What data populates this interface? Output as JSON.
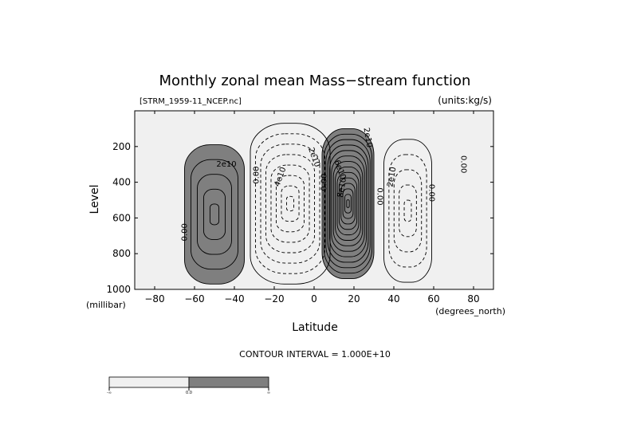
{
  "chart_data": {
    "type": "contour",
    "title": "Monthly zonal mean Mass−stream function",
    "file_label": "[STRM_1959-11_NCEP.nc]",
    "units_label": "(units:kg/s)",
    "xlabel": "Latitude",
    "x_units": "(degrees_north)",
    "ylabel": "Level",
    "y_units": "(millibar)",
    "xlim": [
      -90,
      90
    ],
    "ylim": [
      1000,
      0
    ],
    "x_ticks": [
      -80,
      -60,
      -40,
      -20,
      0,
      20,
      40,
      60,
      80
    ],
    "y_ticks": [
      200,
      400,
      600,
      800,
      1000
    ],
    "contour_interval_text": "CONTOUR INTERVAL = 1.000E+10",
    "contour_interval": 10000000000,
    "fill": {
      "positive": "#7f7f7f",
      "negative": "#f0f0f0"
    },
    "cells": [
      {
        "sign": "+",
        "lat": -50,
        "lev": 580,
        "peak": 4,
        "half_lat": 15,
        "half_lev": 390
      },
      {
        "sign": "-",
        "lat": -12,
        "lev": 520,
        "peak": 7,
        "half_lat": 20,
        "half_lev": 450
      },
      {
        "sign": "+",
        "lat": 17,
        "lev": 520,
        "peak": 13,
        "half_lat": 13,
        "half_lev": 420
      },
      {
        "sign": "-",
        "lat": 47,
        "lev": 560,
        "peak": 4,
        "half_lat": 12,
        "half_lev": 400
      }
    ],
    "contour_labels": [
      {
        "text": "2e10",
        "lat": -44,
        "lev": 300,
        "rot": 0
      },
      {
        "text": "0.00",
        "lat": -29,
        "lev": 360,
        "rot": -90
      },
      {
        "text": "0.00",
        "lat": -65,
        "lev": 680,
        "rot": -90
      },
      {
        "text": "4e10",
        "lat": -17,
        "lev": 370,
        "rot": -70
      },
      {
        "text": "2e10",
        "lat": 0,
        "lev": 260,
        "rot": 70
      },
      {
        "text": "0.00",
        "lat": 5,
        "lev": 400,
        "rot": -90
      },
      {
        "text": "8e10",
        "lat": 14,
        "lev": 430,
        "rot": -80
      },
      {
        "text": "6e10",
        "lat": 13,
        "lev": 330,
        "rot": 70
      },
      {
        "text": "2e10",
        "lat": 27,
        "lev": 150,
        "rot": 80
      },
      {
        "text": "0.00",
        "lat": 33,
        "lev": 480,
        "rot": 90
      },
      {
        "text": "2e10",
        "lat": 39,
        "lev": 370,
        "rot": -80
      },
      {
        "text": "0.00",
        "lat": 59,
        "lev": 460,
        "rot": 90
      },
      {
        "text": "0.00",
        "lat": 75,
        "lev": 300,
        "rot": 90
      }
    ],
    "colorbar": {
      "labels": [
        "-∞",
        "0.0",
        "∞"
      ],
      "colors": [
        "#f0f0f0",
        "#7f7f7f"
      ]
    },
    "grid": false,
    "legend": "none"
  }
}
